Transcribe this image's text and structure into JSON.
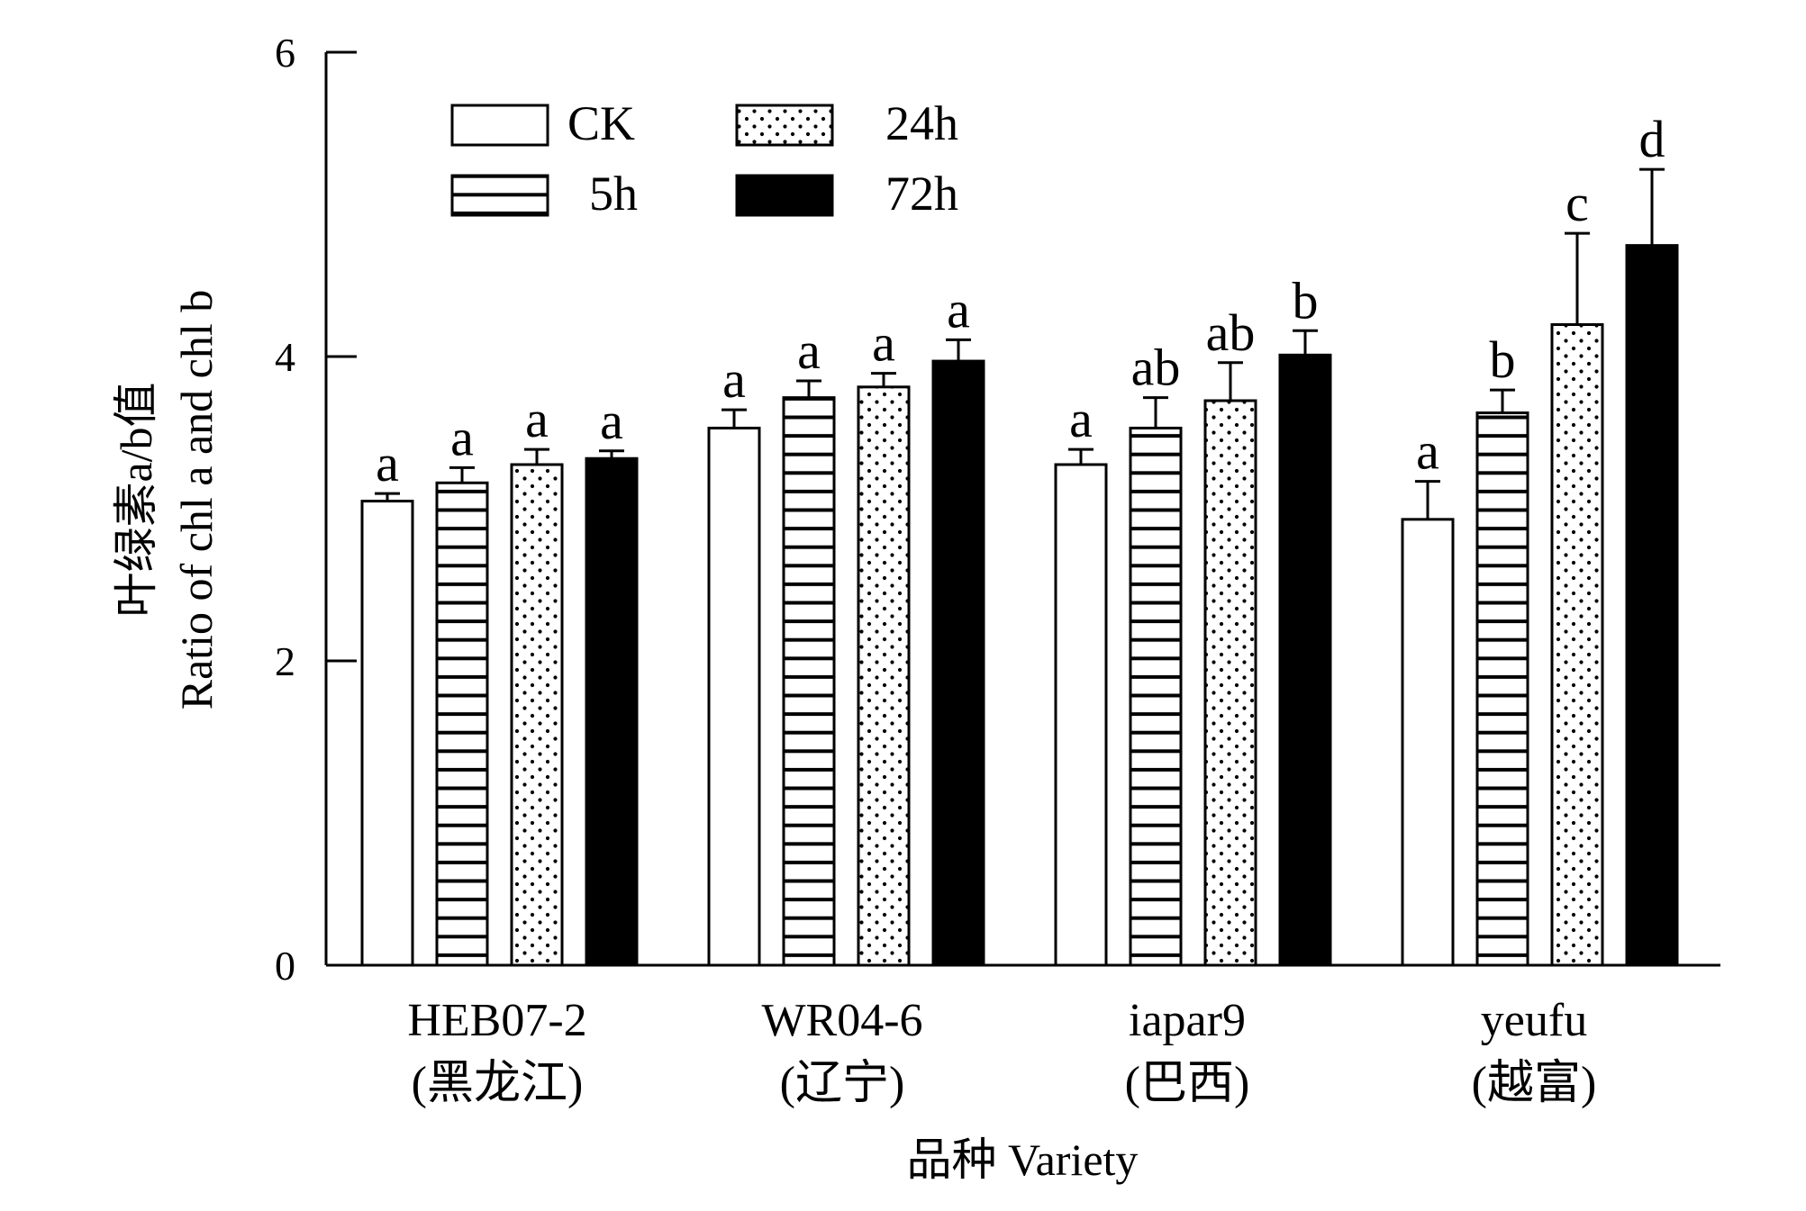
{
  "chart_data": {
    "type": "bar",
    "title": "",
    "ylabel_cn": "叶绿素a/b值",
    "ylabel": "Ratio of chl a and chl b",
    "xlabel": "品种 Variety",
    "ylim": [
      0,
      6
    ],
    "yticks": [
      "0",
      "2",
      "4",
      "6"
    ],
    "categories": [
      {
        "name": "HEB07-2",
        "sub": "(黑龙江)"
      },
      {
        "name": "WR04-6",
        "sub": "(辽宁)"
      },
      {
        "name": "iapar9",
        "sub": "(巴西)"
      },
      {
        "name": "yeufu",
        "sub": "(越富)"
      }
    ],
    "series": [
      {
        "name": "CK",
        "pattern": "blank",
        "values": [
          3.05,
          3.53,
          3.29,
          2.93
        ],
        "errors": [
          0.05,
          0.12,
          0.1,
          0.25
        ],
        "labels": [
          "a",
          "a",
          "a",
          "a"
        ]
      },
      {
        "name": "5h",
        "pattern": "horizontal-lines",
        "values": [
          3.17,
          3.73,
          3.53,
          3.63
        ],
        "errors": [
          0.1,
          0.11,
          0.2,
          0.15
        ],
        "labels": [
          "a",
          "a",
          "ab",
          "b"
        ]
      },
      {
        "name": "24h",
        "pattern": "dots",
        "values": [
          3.29,
          3.8,
          3.71,
          4.21
        ],
        "errors": [
          0.1,
          0.09,
          0.25,
          0.6
        ],
        "labels": [
          "a",
          "a",
          "ab",
          "c"
        ]
      },
      {
        "name": "72h",
        "pattern": "solid-black",
        "values": [
          3.33,
          3.97,
          4.01,
          4.73
        ],
        "errors": [
          0.05,
          0.14,
          0.16,
          0.5
        ],
        "labels": [
          "a",
          "a",
          "b",
          "d"
        ]
      }
    ],
    "legend_placement": "top-left",
    "grid": false
  }
}
